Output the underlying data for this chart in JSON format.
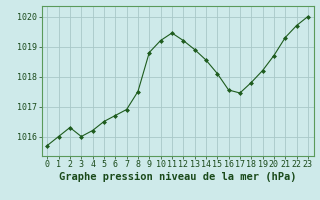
{
  "x": [
    0,
    1,
    2,
    3,
    4,
    5,
    6,
    7,
    8,
    9,
    10,
    11,
    12,
    13,
    14,
    15,
    16,
    17,
    18,
    19,
    20,
    21,
    22,
    23
  ],
  "y": [
    1015.7,
    1016.0,
    1016.3,
    1016.0,
    1016.2,
    1016.5,
    1016.7,
    1016.9,
    1017.5,
    1018.8,
    1019.2,
    1019.45,
    1019.2,
    1018.9,
    1018.55,
    1018.1,
    1017.55,
    1017.45,
    1017.8,
    1018.2,
    1018.7,
    1019.3,
    1019.7,
    1020.0
  ],
  "line_color": "#1e5c1e",
  "marker_color": "#1e5c1e",
  "bg_color": "#ceeaea",
  "grid_color": "#a8c8c8",
  "xlabel": "Graphe pression niveau de la mer (hPa)",
  "xlabel_color": "#1a4a1a",
  "ytick_labels": [
    "1016",
    "1017",
    "1018",
    "1019",
    "1020"
  ],
  "ytick_values": [
    1016,
    1017,
    1018,
    1019,
    1020
  ],
  "ylim": [
    1015.35,
    1020.35
  ],
  "xlim": [
    -0.5,
    23.5
  ],
  "xtick_values": [
    0,
    1,
    2,
    3,
    4,
    5,
    6,
    7,
    8,
    9,
    10,
    11,
    12,
    13,
    14,
    15,
    16,
    17,
    18,
    19,
    20,
    21,
    22,
    23
  ],
  "tick_color": "#1a4a1a",
  "axis_color": "#5a9a5a",
  "xlabel_fontsize": 7.5,
  "xlabel_fontweight": "bold",
  "tick_fontsize": 6.0
}
